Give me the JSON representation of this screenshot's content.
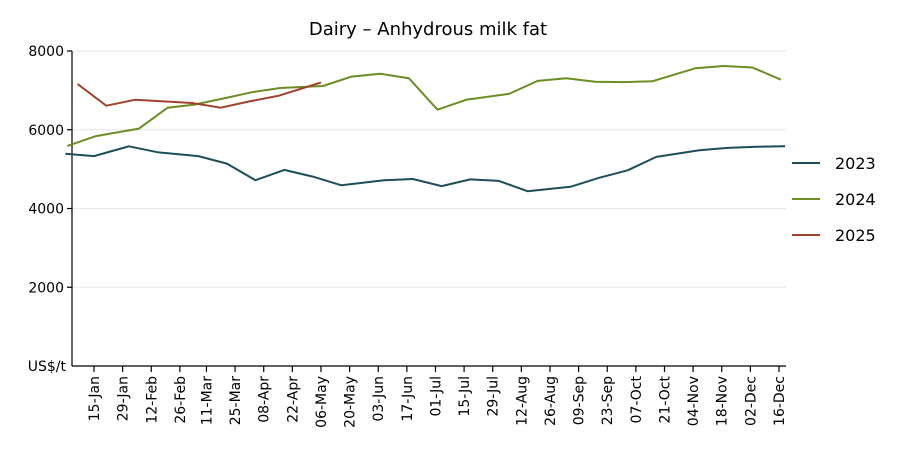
{
  "chart_data": {
    "type": "line",
    "title": "Dairy – Anhydrous milk fat",
    "ylabel": "US$/t",
    "xlabel": "",
    "ylim": [
      0,
      8000
    ],
    "yticks": [
      2000,
      4000,
      6000,
      8000
    ],
    "grid": true,
    "legend_position": "right",
    "categories": [
      "15-Jan",
      "29-Jan",
      "12-Feb",
      "26-Feb",
      "11-Mar",
      "25-Mar",
      "08-Apr",
      "22-Apr",
      "06-May",
      "20-May",
      "03-Jun",
      "17-Jun",
      "01-Jul",
      "15-Jul",
      "29-Jul",
      "12-Aug",
      "26-Aug",
      "09-Sep",
      "23-Sep",
      "07-Oct",
      "21-Oct",
      "04-Nov",
      "18-Nov",
      "02-Dec",
      "16-Dec"
    ],
    "series": [
      {
        "name": "2023",
        "color": "#1b4f5a",
        "points": [
          {
            "x": "01-Jan",
            "y": 5390
          },
          {
            "x": "15-Jan",
            "y": 5330
          },
          {
            "x": "01-Feb",
            "y": 5580
          },
          {
            "x": "15-Feb",
            "y": 5430
          },
          {
            "x": "07-Mar",
            "y": 5330
          },
          {
            "x": "21-Mar",
            "y": 5140
          },
          {
            "x": "04-Apr",
            "y": 4720
          },
          {
            "x": "18-Apr",
            "y": 4980
          },
          {
            "x": "02-May",
            "y": 4810
          },
          {
            "x": "16-May",
            "y": 4590
          },
          {
            "x": "06-Jun",
            "y": 4720
          },
          {
            "x": "20-Jun",
            "y": 4750
          },
          {
            "x": "04-Jul",
            "y": 4570
          },
          {
            "x": "18-Jul",
            "y": 4740
          },
          {
            "x": "01-Aug",
            "y": 4700
          },
          {
            "x": "15-Aug",
            "y": 4440
          },
          {
            "x": "05-Sep",
            "y": 4550
          },
          {
            "x": "19-Sep",
            "y": 4780
          },
          {
            "x": "03-Oct",
            "y": 4970
          },
          {
            "x": "17-Oct",
            "y": 5310
          },
          {
            "x": "07-Nov",
            "y": 5480
          },
          {
            "x": "21-Nov",
            "y": 5540
          },
          {
            "x": "05-Dec",
            "y": 5570
          },
          {
            "x": "19-Dec",
            "y": 5580
          }
        ]
      },
      {
        "name": "2024",
        "color": "#6b8e23",
        "points": [
          {
            "x": "02-Jan",
            "y": 5590
          },
          {
            "x": "16-Jan",
            "y": 5840
          },
          {
            "x": "06-Feb",
            "y": 6030
          },
          {
            "x": "20-Feb",
            "y": 6560
          },
          {
            "x": "05-Mar",
            "y": 6640
          },
          {
            "x": "19-Mar",
            "y": 6790
          },
          {
            "x": "02-Apr",
            "y": 6950
          },
          {
            "x": "16-Apr",
            "y": 7060
          },
          {
            "x": "07-May",
            "y": 7110
          },
          {
            "x": "21-May",
            "y": 7350
          },
          {
            "x": "04-Jun",
            "y": 7420
          },
          {
            "x": "18-Jun",
            "y": 7310
          },
          {
            "x": "02-Jul",
            "y": 6510
          },
          {
            "x": "16-Jul",
            "y": 6760
          },
          {
            "x": "06-Aug",
            "y": 6910
          },
          {
            "x": "20-Aug",
            "y": 7240
          },
          {
            "x": "03-Sep",
            "y": 7310
          },
          {
            "x": "17-Sep",
            "y": 7220
          },
          {
            "x": "01-Oct",
            "y": 7210
          },
          {
            "x": "15-Oct",
            "y": 7230
          },
          {
            "x": "05-Nov",
            "y": 7560
          },
          {
            "x": "19-Nov",
            "y": 7620
          },
          {
            "x": "03-Dec",
            "y": 7580
          },
          {
            "x": "17-Dec",
            "y": 7270
          }
        ]
      },
      {
        "name": "2025",
        "color": "#a0432d",
        "points": [
          {
            "x": "07-Jan",
            "y": 7160
          },
          {
            "x": "21-Jan",
            "y": 6610
          },
          {
            "x": "04-Feb",
            "y": 6760
          },
          {
            "x": "18-Feb",
            "y": 6720
          },
          {
            "x": "04-Mar",
            "y": 6680
          },
          {
            "x": "18-Mar",
            "y": 6560
          },
          {
            "x": "01-Apr",
            "y": 6720
          },
          {
            "x": "15-Apr",
            "y": 6860
          },
          {
            "x": "06-May",
            "y": 7200
          }
        ]
      }
    ]
  }
}
